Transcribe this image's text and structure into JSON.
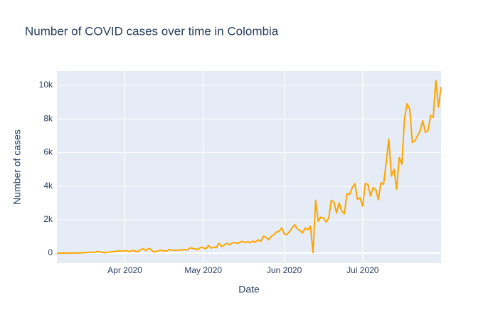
{
  "chart_data": {
    "type": "line",
    "title": "Number of COVID cases over time in Colombia",
    "x_label": "Date",
    "y_label": "Number of cases",
    "x": [
      "2020-03-06",
      "2020-03-07",
      "2020-03-08",
      "2020-03-09",
      "2020-03-10",
      "2020-03-11",
      "2020-03-12",
      "2020-03-13",
      "2020-03-14",
      "2020-03-15",
      "2020-03-16",
      "2020-03-17",
      "2020-03-18",
      "2020-03-19",
      "2020-03-20",
      "2020-03-21",
      "2020-03-22",
      "2020-03-23",
      "2020-03-24",
      "2020-03-25",
      "2020-03-26",
      "2020-03-27",
      "2020-03-28",
      "2020-03-29",
      "2020-03-30",
      "2020-03-31",
      "2020-04-01",
      "2020-04-02",
      "2020-04-03",
      "2020-04-04",
      "2020-04-05",
      "2020-04-06",
      "2020-04-07",
      "2020-04-08",
      "2020-04-09",
      "2020-04-10",
      "2020-04-11",
      "2020-04-12",
      "2020-04-13",
      "2020-04-14",
      "2020-04-15",
      "2020-04-16",
      "2020-04-17",
      "2020-04-18",
      "2020-04-19",
      "2020-04-20",
      "2020-04-21",
      "2020-04-22",
      "2020-04-23",
      "2020-04-24",
      "2020-04-25",
      "2020-04-26",
      "2020-04-27",
      "2020-04-28",
      "2020-04-29",
      "2020-04-30",
      "2020-05-01",
      "2020-05-02",
      "2020-05-03",
      "2020-05-04",
      "2020-05-05",
      "2020-05-06",
      "2020-05-07",
      "2020-05-08",
      "2020-05-09",
      "2020-05-10",
      "2020-05-11",
      "2020-05-12",
      "2020-05-13",
      "2020-05-14",
      "2020-05-15",
      "2020-05-16",
      "2020-05-17",
      "2020-05-18",
      "2020-05-19",
      "2020-05-20",
      "2020-05-21",
      "2020-05-22",
      "2020-05-23",
      "2020-05-24",
      "2020-05-25",
      "2020-05-26",
      "2020-05-27",
      "2020-05-28",
      "2020-05-29",
      "2020-05-30",
      "2020-05-31",
      "2020-06-01",
      "2020-06-02",
      "2020-06-03",
      "2020-06-04",
      "2020-06-05",
      "2020-06-06",
      "2020-06-07",
      "2020-06-08",
      "2020-06-09",
      "2020-06-10",
      "2020-06-11",
      "2020-06-12",
      "2020-06-13",
      "2020-06-14",
      "2020-06-15",
      "2020-06-16",
      "2020-06-17",
      "2020-06-18",
      "2020-06-19",
      "2020-06-20",
      "2020-06-21",
      "2020-06-22",
      "2020-06-23",
      "2020-06-24",
      "2020-06-25",
      "2020-06-26",
      "2020-06-27",
      "2020-06-28",
      "2020-06-29",
      "2020-06-30",
      "2020-07-01",
      "2020-07-02",
      "2020-07-03",
      "2020-07-04",
      "2020-07-05",
      "2020-07-06",
      "2020-07-07",
      "2020-07-08",
      "2020-07-09",
      "2020-07-10",
      "2020-07-11",
      "2020-07-12",
      "2020-07-13",
      "2020-07-14",
      "2020-07-15",
      "2020-07-16",
      "2020-07-17",
      "2020-07-18",
      "2020-07-19",
      "2020-07-20",
      "2020-07-21",
      "2020-07-22",
      "2020-07-23",
      "2020-07-24",
      "2020-07-25",
      "2020-07-26",
      "2020-07-27",
      "2020-07-28",
      "2020-07-29",
      "2020-07-30",
      "2020-07-31"
    ],
    "series": [
      {
        "color": "#FFA500",
        "values": [
          1,
          0,
          0,
          1,
          0,
          6,
          7,
          5,
          16,
          10,
          21,
          30,
          45,
          60,
          40,
          80,
          90,
          70,
          20,
          40,
          60,
          80,
          100,
          110,
          140,
          120,
          150,
          130,
          100,
          160,
          110,
          90,
          200,
          270,
          150,
          280,
          220,
          70,
          100,
          150,
          170,
          140,
          120,
          220,
          180,
          170,
          180,
          180,
          200,
          210,
          190,
          320,
          280,
          250,
          220,
          350,
          320,
          260,
          460,
          300,
          360,
          330,
          590,
          390,
          480,
          590,
          490,
          600,
          640,
          580,
          650,
          700,
          630,
          680,
          620,
          720,
          650,
          800,
          700,
          1000,
          950,
          800,
          1000,
          1100,
          1250,
          1300,
          1500,
          1150,
          1100,
          1300,
          1500,
          1700,
          1450,
          1350,
          1200,
          1500,
          1400,
          1600,
          30,
          3150,
          1900,
          2150,
          2100,
          1850,
          2100,
          3150,
          3050,
          2400,
          3000,
          2500,
          2350,
          3550,
          3500,
          3900,
          4150,
          3200,
          3300,
          2800,
          4150,
          4100,
          3400,
          3900,
          3800,
          3200,
          4200,
          4100,
          5400,
          6800,
          4600,
          5000,
          3800,
          5700,
          5300,
          8000,
          8900,
          8600,
          6600,
          6700,
          7000,
          7300,
          7900,
          7200,
          7300,
          8200,
          8100,
          10300,
          8700,
          9900
        ]
      }
    ],
    "xlim": [
      "2020-03-06",
      "2020-07-31"
    ],
    "xticks": [
      {
        "value": "2020-04-01",
        "label": "Apr 2020"
      },
      {
        "value": "2020-05-01",
        "label": "May 2020"
      },
      {
        "value": "2020-06-01",
        "label": "Jun 2020"
      },
      {
        "value": "2020-07-01",
        "label": "Jul 2020"
      }
    ],
    "ylim": [
      -593,
      10850
    ],
    "yticks": [
      0,
      {
        "value": 2000,
        "label": "2k"
      },
      {
        "value": 4000,
        "label": "4k"
      },
      {
        "value": 6000,
        "label": "6k"
      },
      {
        "value": 8000,
        "label": "8k"
      },
      {
        "value": 10000,
        "label": "10k"
      }
    ],
    "grid": true
  }
}
